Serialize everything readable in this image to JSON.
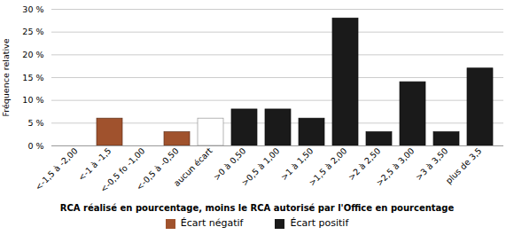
{
  "chart_data": {
    "type": "bar",
    "categories": [
      "<-1,5 à -2,00",
      "<-1 à -1,5",
      "<-0,5 fo -1,00",
      "<-0,5 à -0,50",
      "aucun écart",
      ">0 à 0,50",
      ">0,5 à 1,00",
      ">1 à 1,50",
      ">1,5 à 2,00",
      ">2 à 2,50",
      ">2,5 à 3,00",
      ">3 à 3,50",
      "plus de 3,5"
    ],
    "values": [
      0,
      6,
      0,
      3,
      6,
      8,
      8,
      6,
      28,
      3,
      14,
      3,
      17
    ],
    "colors": [
      "#a0522d",
      "#a0522d",
      "#a0522d",
      "#a0522d",
      "#ffffff",
      "#1a1a1a",
      "#1a1a1a",
      "#1a1a1a",
      "#1a1a1a",
      "#1a1a1a",
      "#1a1a1a",
      "#1a1a1a",
      "#1a1a1a"
    ],
    "xlabel": "RCA réalisé en pourcentage, moins le RCA autorisé par l'Office en pourcentage",
    "ylabel": "Fréquence relative",
    "ylim": [
      0,
      30
    ],
    "yticks": [
      {
        "value": 0,
        "label": "0 %"
      },
      {
        "value": 5,
        "label": "5 %"
      },
      {
        "value": 10,
        "label": "10 %"
      },
      {
        "value": 15,
        "label": "15 %"
      },
      {
        "value": 20,
        "label": "20 %"
      },
      {
        "value": 25,
        "label": "25 %"
      },
      {
        "value": 30,
        "label": "30 %"
      }
    ],
    "grid": true,
    "legend": "bottom",
    "legend_entries": [
      {
        "name": "Écart négatif",
        "color": "#a0522d"
      },
      {
        "name": "Écart positif",
        "color": "#1a1a1a"
      }
    ]
  }
}
